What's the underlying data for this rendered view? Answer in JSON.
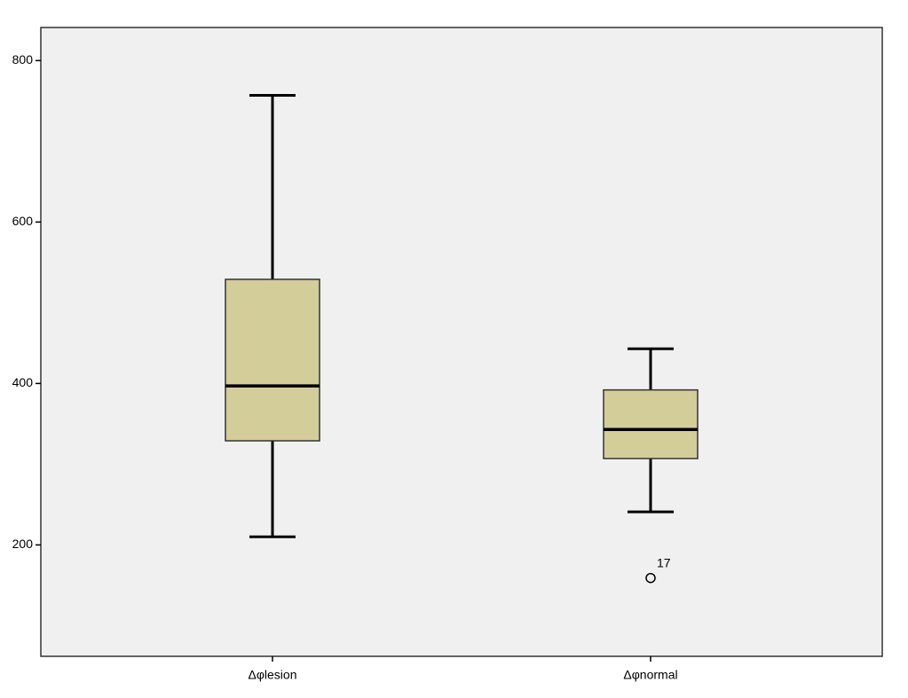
{
  "chart_data": {
    "type": "box",
    "categories": [
      "Δφlesion",
      "Δφnormal"
    ],
    "boxes": [
      {
        "min": 210,
        "q1": 329,
        "median": 397,
        "q3": 529,
        "max": 757,
        "outliers": []
      },
      {
        "min": 241,
        "q1": 307,
        "median": 343,
        "q3": 392,
        "max": 443,
        "outliers": [
          {
            "value": 159,
            "label": "17"
          }
        ]
      }
    ],
    "color": "#d3cd99",
    "background": "#f0f0f0",
    "ylim": [
      62,
      841
    ],
    "yticks": [
      200,
      400,
      600,
      800
    ]
  }
}
